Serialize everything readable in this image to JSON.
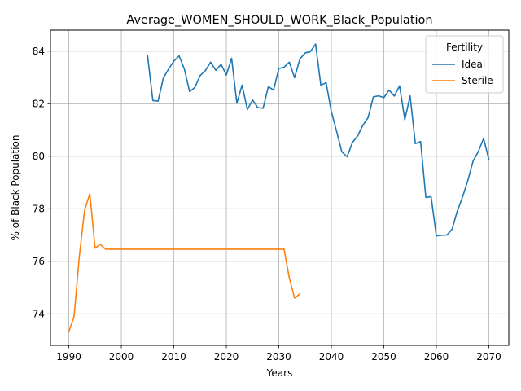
{
  "chart_data": {
    "type": "line",
    "title": "Average_WOMEN_SHOULD_WORK_Black_Population",
    "xlabel": "Years",
    "ylabel": "% of Black Population",
    "xlim": [
      1986.5,
      2073.8
    ],
    "ylim": [
      72.8,
      84.8
    ],
    "xticks": [
      1990,
      2000,
      2010,
      2020,
      2030,
      2040,
      2050,
      2060,
      2070
    ],
    "yticks": [
      74,
      76,
      78,
      80,
      82,
      84
    ],
    "grid": true,
    "legend": {
      "title": "Fertility",
      "placement": "top-right"
    },
    "series": [
      {
        "name": "Ideal",
        "color": "#1f77b4",
        "x": [
          2005,
          2006,
          2007,
          2008,
          2009,
          2010,
          2011,
          2012,
          2013,
          2014,
          2015,
          2016,
          2017,
          2018,
          2019,
          2020,
          2021,
          2022,
          2023,
          2024,
          2025,
          2026,
          2027,
          2028,
          2029,
          2030,
          2031,
          2032,
          2033,
          2034,
          2035,
          2036,
          2037,
          2038,
          2039,
          2040,
          2041,
          2042,
          2043,
          2044,
          2045,
          2046,
          2047,
          2048,
          2049,
          2050,
          2051,
          2052,
          2053,
          2054,
          2055,
          2056,
          2057,
          2058,
          2059,
          2060,
          2061,
          2062,
          2063,
          2064,
          2065,
          2066,
          2067,
          2068,
          2069,
          2070
        ],
        "y": [
          83.82,
          82.12,
          82.1,
          82.98,
          83.32,
          83.62,
          83.82,
          83.32,
          82.46,
          82.62,
          83.07,
          83.26,
          83.58,
          83.27,
          83.5,
          83.09,
          83.73,
          82.02,
          82.71,
          81.78,
          82.14,
          81.85,
          81.83,
          82.65,
          82.52,
          83.34,
          83.39,
          83.58,
          82.99,
          83.7,
          83.93,
          83.98,
          84.27,
          82.7,
          82.8,
          81.7,
          80.95,
          80.17,
          79.98,
          80.52,
          80.77,
          81.18,
          81.47,
          82.26,
          82.3,
          82.23,
          82.52,
          82.29,
          82.68,
          81.39,
          82.3,
          80.48,
          80.56,
          78.43,
          78.46,
          76.97,
          76.99,
          77.0,
          77.22,
          77.92,
          78.45,
          79.08,
          79.82,
          80.18,
          80.68,
          79.88
        ]
      },
      {
        "name": "Sterile",
        "color": "#ff7f0e",
        "x": [
          1990,
          1991,
          1992,
          1993,
          1994,
          1995,
          1996,
          1997,
          1998,
          1999,
          2000,
          2001,
          2002,
          2003,
          2004,
          2005,
          2006,
          2007,
          2008,
          2009,
          2010,
          2011,
          2012,
          2013,
          2014,
          2015,
          2016,
          2017,
          2018,
          2019,
          2020,
          2021,
          2022,
          2023,
          2024,
          2025,
          2026,
          2027,
          2028,
          2029,
          2030,
          2031,
          2032,
          2033,
          2034
        ],
        "y": [
          73.32,
          73.91,
          76.2,
          77.95,
          78.57,
          76.5,
          76.65,
          76.46,
          76.46,
          76.46,
          76.46,
          76.46,
          76.46,
          76.46,
          76.46,
          76.46,
          76.46,
          76.46,
          76.46,
          76.46,
          76.46,
          76.46,
          76.46,
          76.46,
          76.46,
          76.46,
          76.46,
          76.46,
          76.46,
          76.46,
          76.46,
          76.46,
          76.46,
          76.46,
          76.46,
          76.46,
          76.46,
          76.46,
          76.46,
          76.46,
          76.46,
          76.46,
          75.36,
          74.6,
          74.76
        ]
      }
    ]
  }
}
